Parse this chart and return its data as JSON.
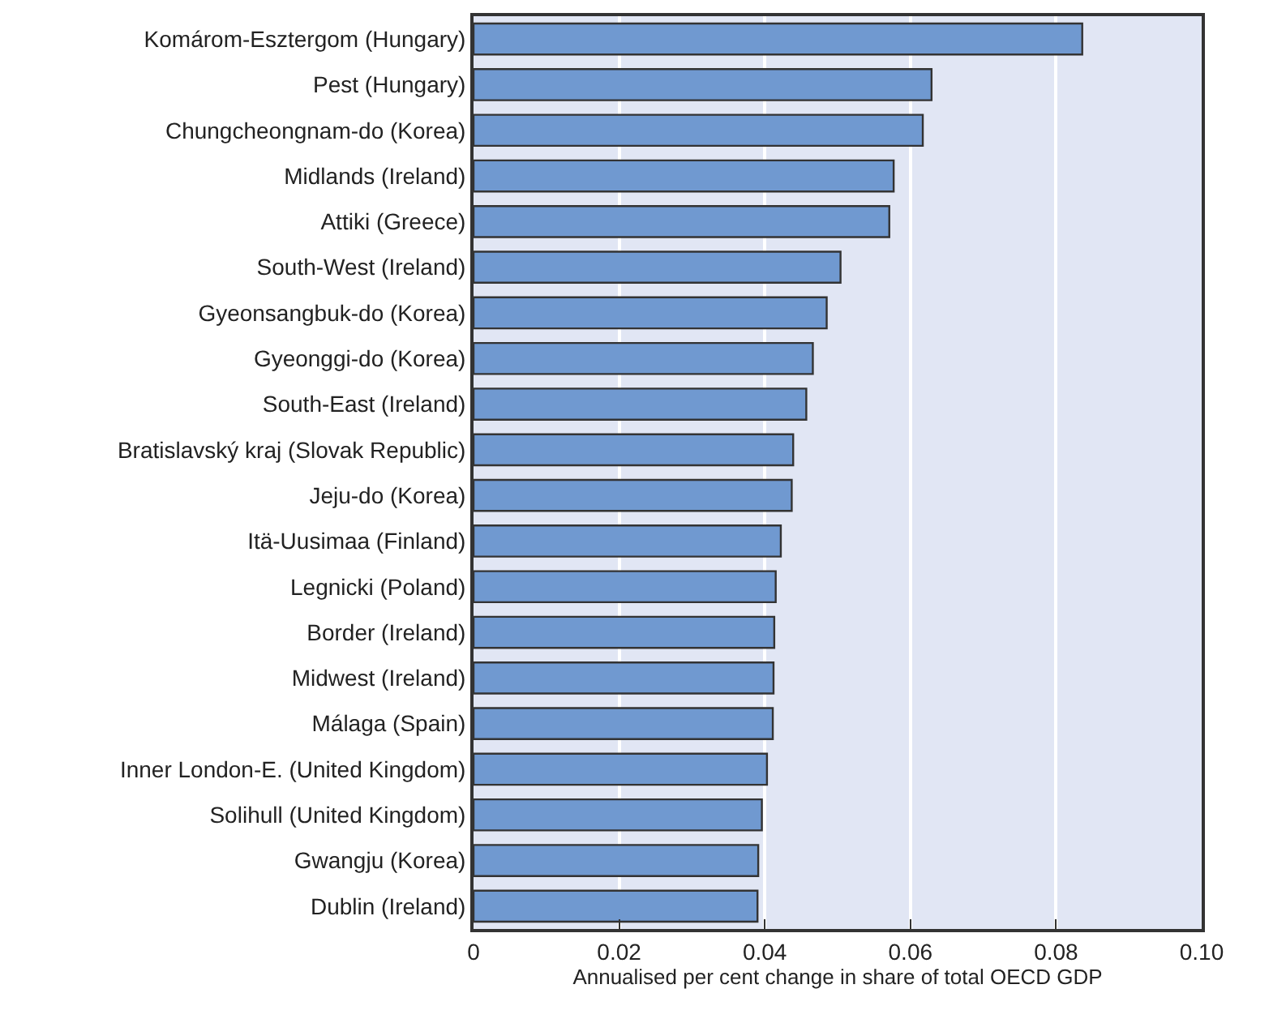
{
  "chart_data": {
    "type": "bar",
    "orientation": "horizontal",
    "xlabel": "Annualised per cent change in share of total OECD GDP",
    "categories": [
      "Komárom-Esztergom (Hungary)",
      "Pest (Hungary)",
      "Chungcheongnam-do (Korea)",
      "Midlands (Ireland)",
      "Attiki (Greece)",
      "South-West (Ireland)",
      "Gyeonsangbuk-do (Korea)",
      "Gyeonggi-do (Korea)",
      "South-East (Ireland)",
      "Bratislavský kraj (Slovak Republic)",
      "Jeju-do (Korea)",
      "Itä-Uusimaa (Finland)",
      "Legnicki (Poland)",
      "Border (Ireland)",
      "Midwest (Ireland)",
      "Málaga (Spain)",
      "Inner London-E. (United Kingdom)",
      "Solihull (United Kingdom)",
      "Gwangju (Korea)",
      "Dublin (Ireland)"
    ],
    "values": [
      0.0836,
      0.0629,
      0.0617,
      0.0577,
      0.0571,
      0.0504,
      0.0485,
      0.0466,
      0.0457,
      0.0439,
      0.0437,
      0.0422,
      0.0415,
      0.0413,
      0.0412,
      0.0411,
      0.0403,
      0.0396,
      0.0391,
      0.039
    ],
    "color": "#7099d0",
    "xlim": [
      0,
      0.1
    ],
    "xticks": [
      0,
      0.02,
      0.04,
      0.06,
      0.08,
      {
        "value": 0.1,
        "label": "0.10"
      }
    ],
    "grid": "x"
  }
}
